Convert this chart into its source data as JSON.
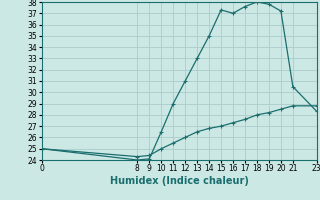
{
  "xlabel": "Humidex (Indice chaleur)",
  "background_color": "#cce8e4",
  "grid_color": "#aacccc",
  "line_color": "#1a6e6e",
  "xlim": [
    0,
    23
  ],
  "ylim": [
    24,
    38
  ],
  "yticks": [
    24,
    25,
    26,
    27,
    28,
    29,
    30,
    31,
    32,
    33,
    34,
    35,
    36,
    37,
    38
  ],
  "xticks": [
    0,
    8,
    9,
    10,
    11,
    12,
    13,
    14,
    15,
    16,
    17,
    18,
    19,
    20,
    21,
    23
  ],
  "upper_x": [
    0,
    8,
    9,
    10,
    11,
    12,
    13,
    14,
    15,
    16,
    17,
    18,
    19,
    20,
    21,
    23
  ],
  "upper_y": [
    25.0,
    24.0,
    24.1,
    26.5,
    29.0,
    31.0,
    33.0,
    35.0,
    37.3,
    37.0,
    37.6,
    38.0,
    37.8,
    37.2,
    30.5,
    28.3
  ],
  "lower_x": [
    0,
    8,
    9,
    10,
    11,
    12,
    13,
    14,
    15,
    16,
    17,
    18,
    19,
    20,
    21,
    23
  ],
  "lower_y": [
    25.0,
    24.3,
    24.4,
    25.0,
    25.5,
    26.0,
    26.5,
    26.8,
    27.0,
    27.3,
    27.6,
    28.0,
    28.2,
    28.5,
    28.8,
    28.8
  ],
  "tick_fontsize": 5.5,
  "xlabel_fontsize": 7.0
}
